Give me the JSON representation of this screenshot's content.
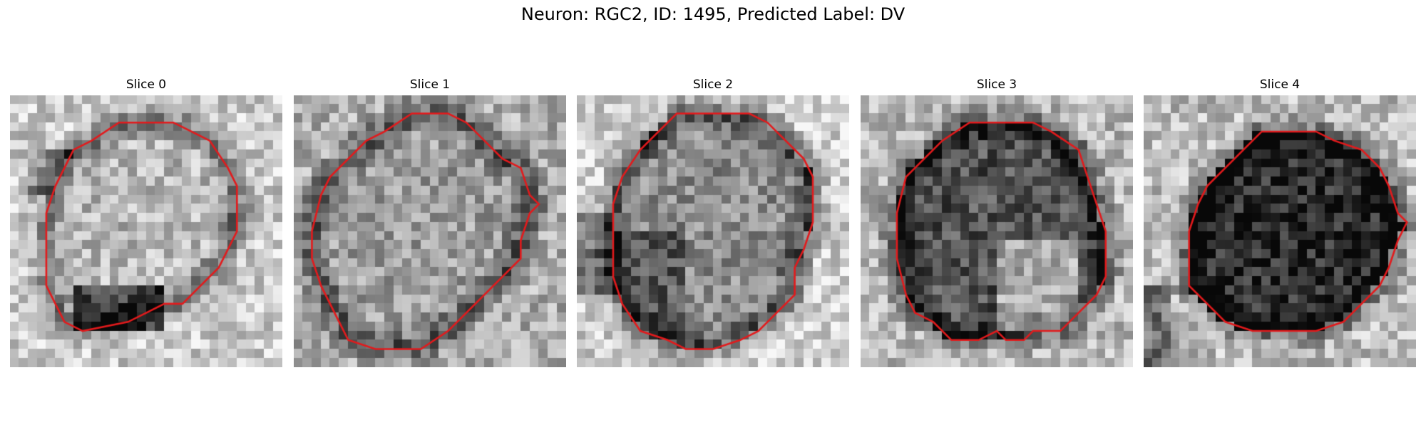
{
  "figure": {
    "title": "Neuron: RGC2, ID: 1495, Predicted Label: DV",
    "contour_color": "#e31a1c",
    "panels": [
      {
        "title": "Slice 0",
        "tone": "bright cell interior, dark membrane ring, dark blob lower-left",
        "seed": 11
      },
      {
        "title": "Slice 1",
        "tone": "mottled grey interior, dark membrane ring",
        "seed": 23
      },
      {
        "title": "Slice 2",
        "tone": "grey interior, darker left side",
        "seed": 37
      },
      {
        "title": "Slice 3",
        "tone": "dark interior with bright lower-right region",
        "seed": 51
      },
      {
        "title": "Slice 4",
        "tone": "very dark interior, bright surround",
        "seed": 67
      }
    ]
  }
}
